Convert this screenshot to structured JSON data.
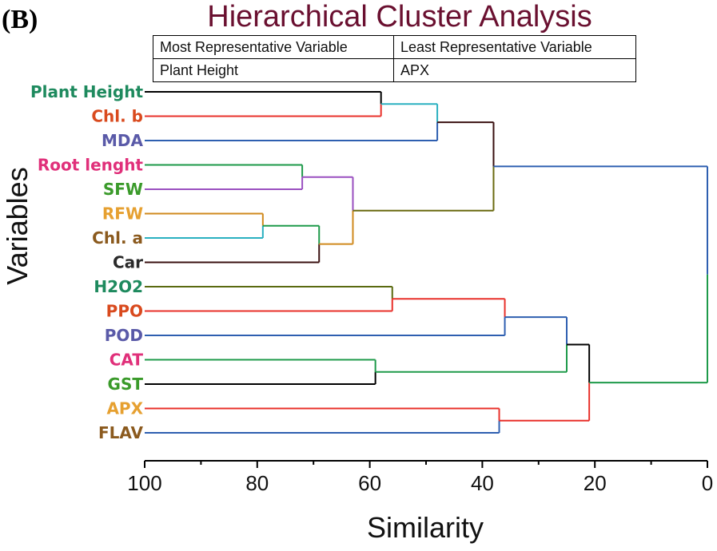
{
  "panel_label": "(B)",
  "chart_data": {
    "type": "dendrogram",
    "title": "Hierarchical Cluster Analysis",
    "xlabel": "Similarity",
    "ylabel": "Variables",
    "xlim": [
      100,
      0
    ],
    "xticks": [
      100,
      80,
      60,
      40,
      20,
      0
    ],
    "legend_table": {
      "headers": [
        "Most Representative Variable",
        "Least Representative Variable"
      ],
      "values": [
        "Plant Height",
        "APX"
      ]
    },
    "leaves": [
      {
        "name": "Plant Height",
        "color": "#1e8a5e"
      },
      {
        "name": "Chl. b",
        "color": "#d94a1e"
      },
      {
        "name": "MDA",
        "color": "#5a5aa8"
      },
      {
        "name": "Root lenght",
        "color": "#e0307a"
      },
      {
        "name": "SFW",
        "color": "#3a9a2a"
      },
      {
        "name": "RFW",
        "color": "#e6a030"
      },
      {
        "name": "Chl. a",
        "color": "#8b5a1e"
      },
      {
        "name": "Car",
        "color": "#2a2a2a"
      },
      {
        "name": "H2O2",
        "color": "#1e8a5e"
      },
      {
        "name": "PPO",
        "color": "#d94a1e"
      },
      {
        "name": "POD",
        "color": "#5a5aa8"
      },
      {
        "name": "CAT",
        "color": "#e0307a"
      },
      {
        "name": "GST",
        "color": "#3a9a2a"
      },
      {
        "name": "APX",
        "color": "#e6a030"
      },
      {
        "name": "FLAV",
        "color": "#8b5a1e"
      }
    ],
    "merges": [
      {
        "id": "m1",
        "left": "Plant Height",
        "right": "Chl. b",
        "similarity": 58,
        "left_color": "#000000",
        "right_color": "#e8302a",
        "stem_color": "#2ab0c0"
      },
      {
        "id": "m2",
        "left": "m1",
        "right": "MDA",
        "similarity": 48,
        "left_color": "#2ab0c0",
        "right_color": "#2e5fb0",
        "stem_color": "#3a1010"
      },
      {
        "id": "m3",
        "left": "Root lenght",
        "right": "SFW",
        "similarity": 72,
        "left_color": "#1e9a4a",
        "right_color": "#9a50c0",
        "stem_color": "#9a50c0"
      },
      {
        "id": "m4",
        "left": "RFW",
        "right": "Chl. a",
        "similarity": 79,
        "left_color": "#d08a1e",
        "right_color": "#2ab0c0",
        "stem_color": "#1e9a4a"
      },
      {
        "id": "m5",
        "left": "m4",
        "right": "Car",
        "similarity": 69,
        "left_color": "#1e9a4a",
        "right_color": "#3a1010",
        "stem_color": "#d08a1e"
      },
      {
        "id": "m6",
        "left": "m3",
        "right": "m5",
        "similarity": 63,
        "left_color": "#9a50c0",
        "right_color": "#d08a1e",
        "stem_color": "#6a6a10"
      },
      {
        "id": "m7",
        "left": "m2",
        "right": "m6",
        "similarity": 38,
        "left_color": "#3a1010",
        "right_color": "#6a6a10",
        "stem_color": "#2e5fb0"
      },
      {
        "id": "m8",
        "left": "H2O2",
        "right": "PPO",
        "similarity": 56,
        "left_color": "#5a6a10",
        "right_color": "#e8302a",
        "stem_color": "#e8302a"
      },
      {
        "id": "m9",
        "left": "m8",
        "right": "POD",
        "similarity": 36,
        "left_color": "#e8302a",
        "right_color": "#2e5fb0",
        "stem_color": "#2e5fb0"
      },
      {
        "id": "m10",
        "left": "CAT",
        "right": "GST",
        "similarity": 59,
        "left_color": "#1e9a4a",
        "right_color": "#000000",
        "stem_color": "#1e9a4a"
      },
      {
        "id": "m11",
        "left": "m9",
        "right": "m10",
        "similarity": 25,
        "left_color": "#2e5fb0",
        "right_color": "#1e9a4a",
        "stem_color": "#000000"
      },
      {
        "id": "m12",
        "left": "APX",
        "right": "FLAV",
        "similarity": 37,
        "left_color": "#e8302a",
        "right_color": "#2e5fb0",
        "stem_color": "#e8302a"
      },
      {
        "id": "m13",
        "left": "m11",
        "right": "m12",
        "similarity": 21,
        "left_color": "#000000",
        "right_color": "#e8302a",
        "stem_color": "#1e9a4a"
      },
      {
        "id": "m14",
        "left": "m7",
        "right": "m13",
        "similarity": 0,
        "left_color": "#2e5fb0",
        "right_color": "#1e9a4a",
        "stem_color": "#1e9a4a"
      }
    ]
  }
}
